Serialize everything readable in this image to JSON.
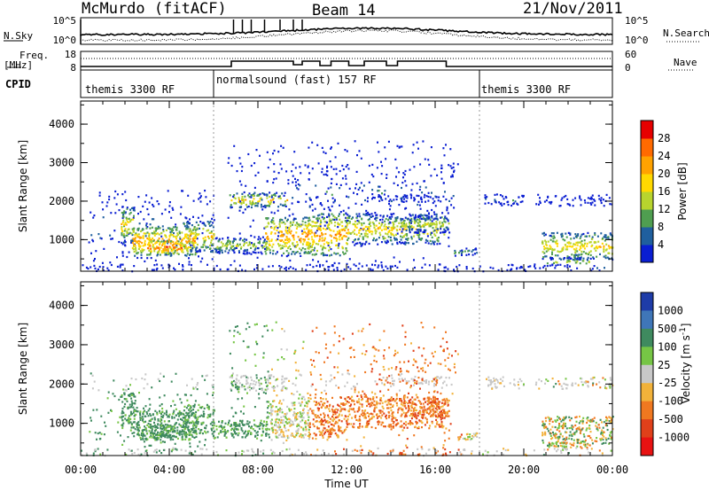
{
  "header": {
    "station": "McMurdo (fitACF)",
    "beam": "Beam 14",
    "date": "21/Nov/2011"
  },
  "noise_panel": {
    "left_label": "N.Sky",
    "left_ticks": [
      "10^5",
      "10^0"
    ],
    "right_label": "N.Search",
    "right_ticks": [
      "10^5",
      "10^0"
    ]
  },
  "freq_panel": {
    "left_label_1": "Freq.",
    "left_label_2": "[MHz]",
    "left_ticks": [
      "18",
      "8"
    ],
    "right_label": "Nave",
    "right_ticks": [
      "60",
      "0"
    ]
  },
  "cpid": {
    "label": "CPID",
    "segments": [
      {
        "text": "themis 3300 RF",
        "start_h": 0,
        "end_h": 6
      },
      {
        "text": "normalsound (fast) 157 RF",
        "start_h": 6,
        "end_h": 18
      },
      {
        "text": "themis 3300 RF",
        "start_h": 18,
        "end_h": 24
      }
    ]
  },
  "chart_data": [
    {
      "type": "heatmap",
      "name": "Power",
      "ylabel": "Slant Range [km]",
      "yticks": [
        "4000",
        "3000",
        "2000",
        "1000"
      ],
      "ylim": [
        180,
        4600
      ],
      "colorbar_label": "Power [dB]",
      "colorbar_ticks": [
        "28",
        "24",
        "20",
        "16",
        "12",
        "8",
        "4"
      ],
      "colorbar_range": [
        0,
        32
      ],
      "colors": [
        "#e60000",
        "#ff6a00",
        "#ffa200",
        "#ffd900",
        "#b8d42e",
        "#4f9e50",
        "#1f5f9e",
        "#0a1ed2"
      ],
      "xlim": [
        0,
        24
      ]
    },
    {
      "type": "heatmap",
      "name": "Velocity",
      "ylabel": "Slant Range [km]",
      "yticks": [
        "4000",
        "3000",
        "2000",
        "1000"
      ],
      "ylim": [
        180,
        4600
      ],
      "colorbar_label": "Velocity [m s^-1]",
      "colorbar_ticks": [
        "1000",
        "500",
        "100",
        "25",
        "-25",
        "-100",
        "-500",
        "-1000"
      ],
      "colors": [
        "#1e3ca8",
        "#3f76b8",
        "#3f8a5f",
        "#76c545",
        "#c8c8c8",
        "#f2b23a",
        "#f07820",
        "#e0401a",
        "#e81212"
      ],
      "xlim": [
        0,
        24
      ]
    }
  ],
  "xaxis": {
    "ticks": [
      "00:00",
      "04:00",
      "08:00",
      "12:00",
      "16:00",
      "20:00",
      "00:00"
    ],
    "label": "Time UT"
  }
}
